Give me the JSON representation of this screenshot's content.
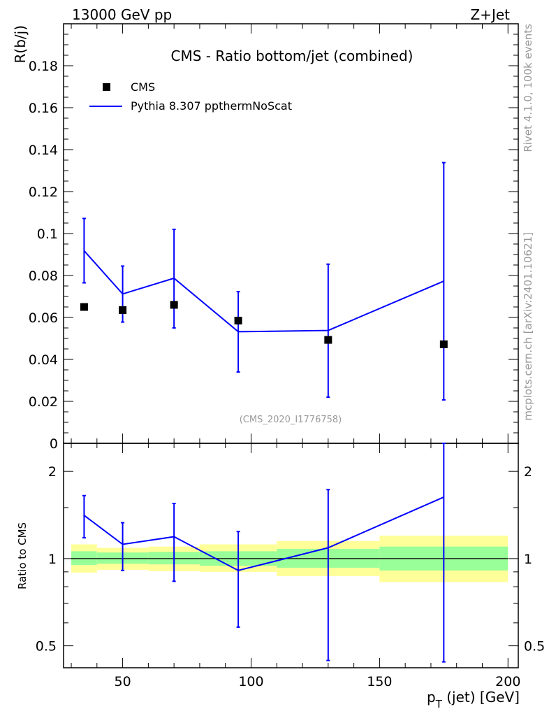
{
  "header": {
    "left": "13000 GeV pp",
    "right": "Z+Jet"
  },
  "side_labels": {
    "rivet": "Rivet 4.1.0,  100k events",
    "mcplots": "mcplots.cern.ch [arXiv:2401.10621]"
  },
  "colors": {
    "data": "#000000",
    "mc": "#0000ff",
    "band_inner": "#99ff99",
    "band_outer": "#ffff99",
    "watermark": "#999999"
  },
  "chart_data": [
    {
      "type": "scatter",
      "title": "CMS - Ratio bottom/jet (combined)",
      "xlabel": "p_T (jet) [GeV]",
      "ylabel": "R(b/j)",
      "xlim": [
        27,
        204
      ],
      "ylim": [
        0,
        0.2
      ],
      "yticks": [
        0,
        0.02,
        0.04,
        0.06,
        0.08,
        0.1,
        0.12,
        0.14,
        0.16,
        0.18
      ],
      "ytick_labels": [
        "0",
        "0.02",
        "0.04",
        "0.06",
        "0.08",
        "0.1",
        "0.12",
        "0.14",
        "0.16",
        "0.18"
      ],
      "watermark": "(CMS_2020_I1776758)",
      "bin_edges": [
        30,
        40,
        60,
        80,
        110,
        150,
        200
      ],
      "series": [
        {
          "name": "CMS",
          "style": "markers",
          "x": [
            35,
            50,
            70,
            95,
            130,
            175
          ],
          "y": [
            0.065,
            0.0635,
            0.066,
            0.0585,
            0.0493,
            0.0472
          ]
        },
        {
          "name": "Pythia 8.307 ppthermNoScat",
          "style": "line",
          "x": [
            35,
            50,
            70,
            95,
            130,
            175
          ],
          "y": [
            0.0918,
            0.0712,
            0.0787,
            0.0532,
            0.0538,
            0.0773
          ],
          "err_low": [
            0.0765,
            0.0578,
            0.055,
            0.034,
            0.022,
            0.0207
          ],
          "err_high": [
            0.1072,
            0.0845,
            0.102,
            0.0723,
            0.0854,
            0.1338
          ]
        }
      ]
    },
    {
      "type": "line",
      "ylabel": "Ratio to CMS",
      "yscale": "log",
      "ylim": [
        0.42,
        2.5
      ],
      "yticks": [
        0.5,
        1,
        2
      ],
      "ytick_labels": [
        "0.5",
        "1",
        "2"
      ],
      "xticks": [
        50,
        100,
        150,
        200
      ],
      "xtick_labels": [
        "50",
        "100",
        "150",
        "200"
      ],
      "reference": 1,
      "band_inner": [
        [
          0.95,
          1.06
        ],
        [
          0.96,
          1.05
        ],
        [
          0.955,
          1.055
        ],
        [
          0.945,
          1.06
        ],
        [
          0.93,
          1.08
        ],
        [
          0.91,
          1.1
        ]
      ],
      "band_outer": [
        [
          0.895,
          1.12
        ],
        [
          0.915,
          1.09
        ],
        [
          0.905,
          1.1
        ],
        [
          0.9,
          1.12
        ],
        [
          0.87,
          1.15
        ],
        [
          0.83,
          1.2
        ]
      ],
      "series": [
        {
          "name": "Pythia 8.307 ppthermNoScat",
          "x": [
            35,
            50,
            70,
            95,
            130,
            175
          ],
          "y": [
            1.41,
            1.12,
            1.19,
            0.91,
            1.09,
            1.63
          ],
          "err_low": [
            1.18,
            0.91,
            0.835,
            0.58,
            0.445,
            0.44
          ],
          "err_high": [
            1.65,
            1.33,
            1.55,
            1.24,
            1.73,
            2.55
          ]
        }
      ]
    }
  ]
}
